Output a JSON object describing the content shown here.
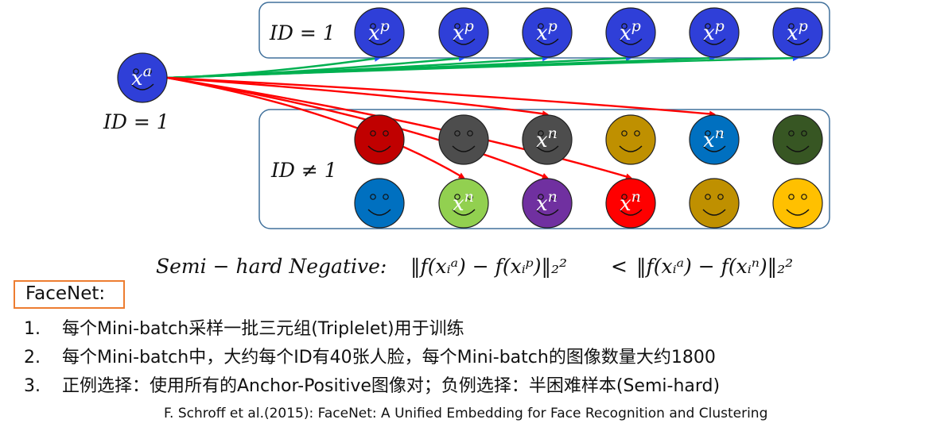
{
  "diagram": {
    "anchor": {
      "symbol": "x",
      "sup": "a",
      "id_label": "ID = 1",
      "color": "#2f3fd8"
    },
    "positive_group": {
      "label": "ID = 1",
      "faces": [
        {
          "symbol": "x",
          "sup": "p",
          "color": "#2f3fd8"
        },
        {
          "symbol": "x",
          "sup": "p",
          "color": "#2f3fd8"
        },
        {
          "symbol": "x",
          "sup": "p",
          "color": "#2f3fd8"
        },
        {
          "symbol": "x",
          "sup": "p",
          "color": "#2f3fd8"
        },
        {
          "symbol": "x",
          "sup": "p",
          "color": "#2f3fd8"
        },
        {
          "symbol": "x",
          "sup": "p",
          "color": "#2f3fd8"
        }
      ]
    },
    "negative_group": {
      "label": "ID ≠ 1",
      "row1": [
        {
          "color": "#c00000",
          "symbol": "",
          "sup": ""
        },
        {
          "color": "#4d4d4d",
          "symbol": "",
          "sup": ""
        },
        {
          "color": "#4d4d4d",
          "symbol": "x",
          "sup": "n"
        },
        {
          "color": "#bf9000",
          "symbol": "",
          "sup": ""
        },
        {
          "color": "#0070c0",
          "symbol": "x",
          "sup": "n"
        },
        {
          "color": "#375623",
          "symbol": "",
          "sup": ""
        }
      ],
      "row2": [
        {
          "color": "#0070c0",
          "symbol": "",
          "sup": ""
        },
        {
          "color": "#92d050",
          "symbol": "x",
          "sup": "n"
        },
        {
          "color": "#7030a0",
          "symbol": "x",
          "sup": "n"
        },
        {
          "color": "#ff0000",
          "symbol": "x",
          "sup": "n"
        },
        {
          "color": "#bf9000",
          "symbol": "",
          "sup": ""
        },
        {
          "color": "#ffc000",
          "symbol": "",
          "sup": ""
        }
      ]
    },
    "arrow_colors": {
      "positive": "#00b050",
      "negative": "#ff0000"
    },
    "formula": {
      "prefix": "Semi − hard Negative:",
      "left": "‖f(xᵢᵃ) − f(xᵢᵖ)‖₂²",
      "op": "<",
      "right": "‖f(xᵢᵃ) − f(xᵢⁿ)‖₂²"
    }
  },
  "facenet": {
    "title": "FaceNet:",
    "items": [
      {
        "num": "1.",
        "text": "每个Mini-batch采样一批三元组(Triplelet)用于训练"
      },
      {
        "num": "2.",
        "text": "每个Mini-batch中，大约每个ID有40张人脸，每个Mini-batch的图像数量大约1800"
      },
      {
        "num": "3.",
        "text": "正例选择：使用所有的Anchor-Positive图像对；负例选择：半困难样本(Semi-hard)"
      }
    ]
  },
  "citation": "F. Schroff et al.(2015): FaceNet: A Unified Embedding for Face Recognition and Clustering"
}
